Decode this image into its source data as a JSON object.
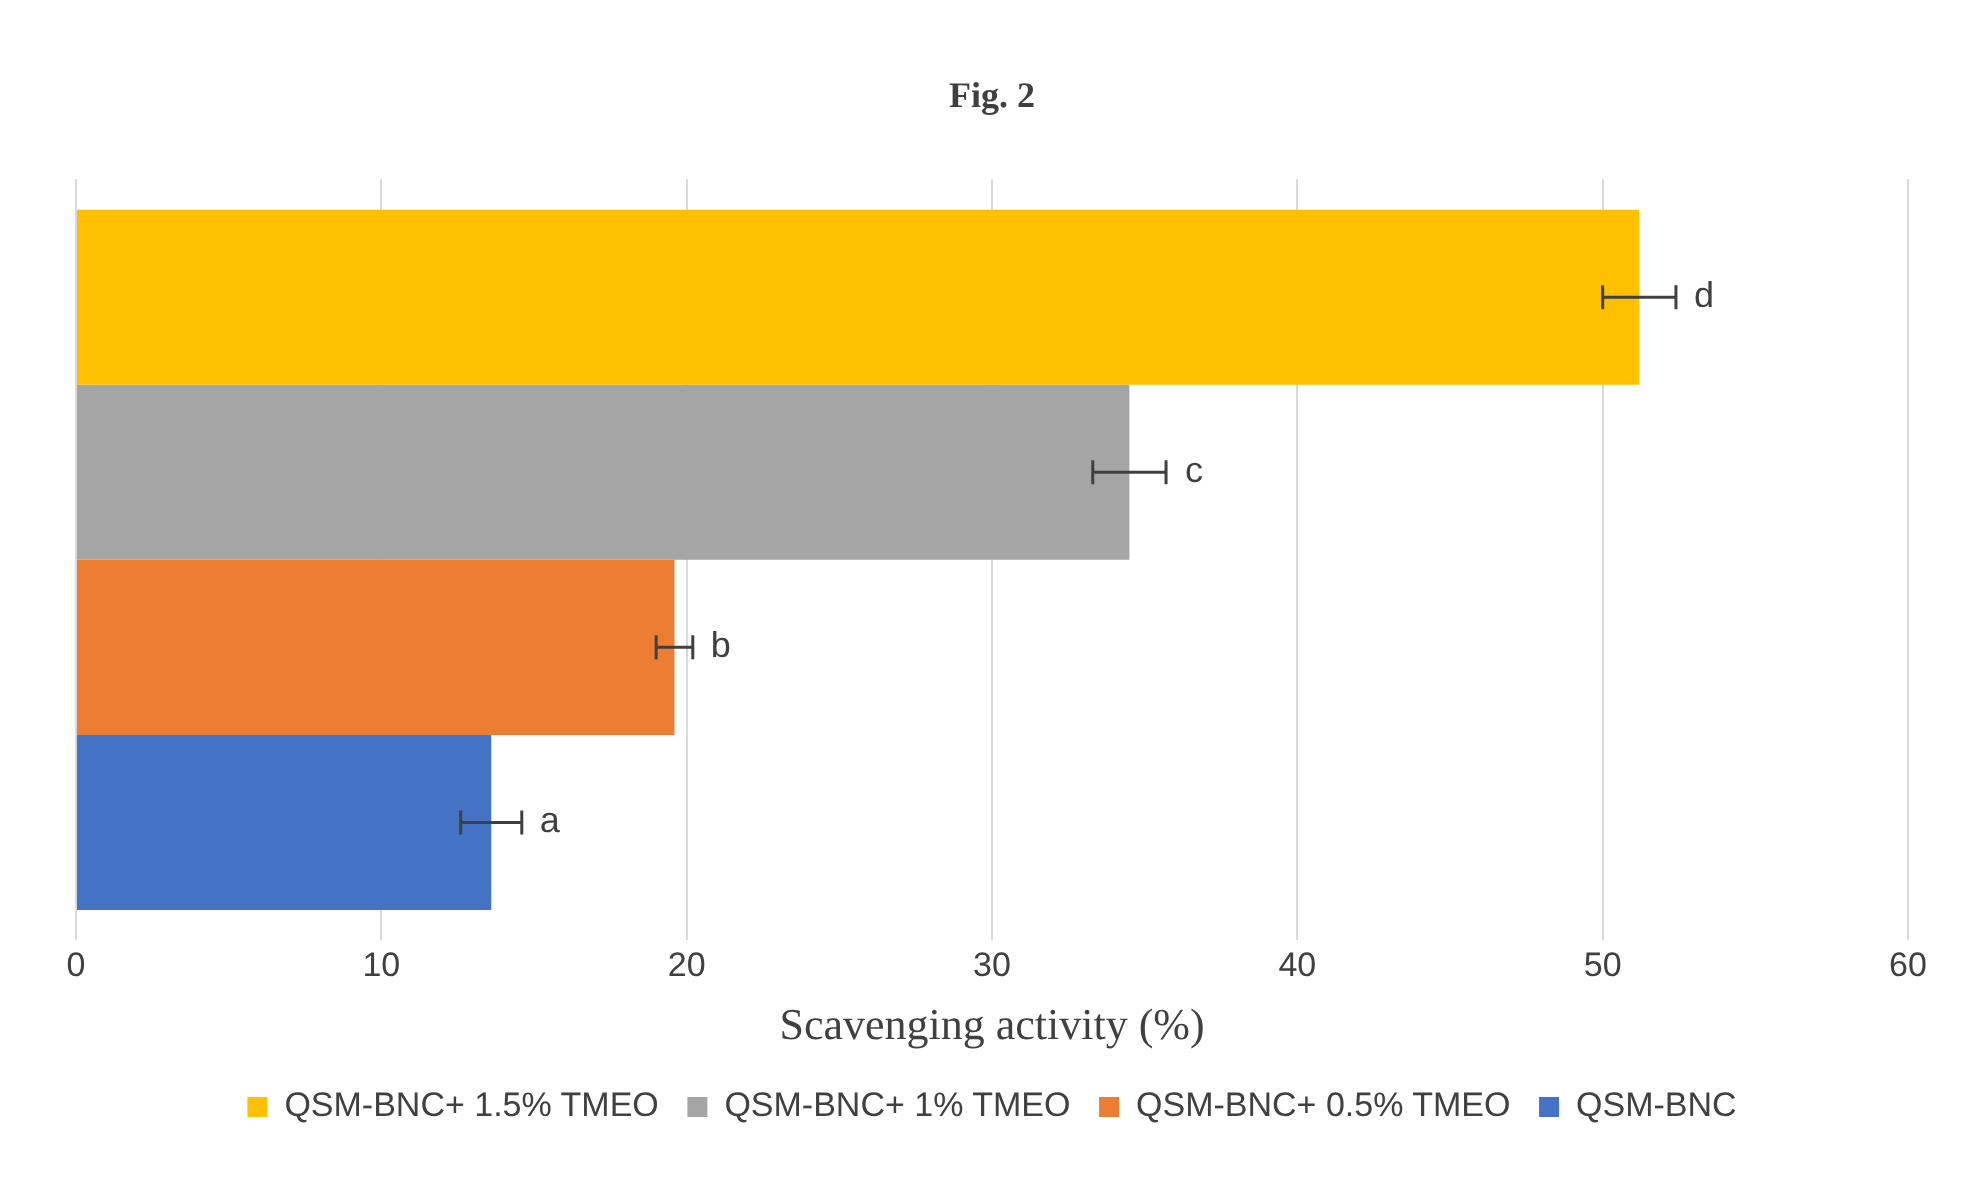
{
  "chart_data": {
    "type": "bar",
    "orientation": "horizontal",
    "title": "Fig. 2",
    "xlabel": "Scavenging activity (%)",
    "categories": [
      null
    ],
    "series": [
      {
        "name": "QSM-BNC+ 1.5% TMEO",
        "color": "#ffc000",
        "values": [
          51.2
        ],
        "errors": [
          1.2
        ]
      },
      {
        "name": "QSM-BNC+ 1% TMEO",
        "color": "#a5a5a5",
        "values": [
          34.5
        ],
        "errors": [
          1.2
        ]
      },
      {
        "name": "QSM-BNC+ 0.5% TMEO",
        "color": "#ed7d31",
        "values": [
          19.6
        ],
        "errors": [
          0.6
        ]
      },
      {
        "name": "QSM-BNC",
        "color": "#4472c4",
        "values": [
          13.6
        ],
        "errors": [
          1.0
        ]
      }
    ],
    "annotations": [
      "d",
      "c",
      "b",
      "a"
    ],
    "xlim": [
      0,
      60
    ],
    "xticks": [
      0,
      10,
      20,
      30,
      40,
      50,
      60
    ],
    "grid": "x",
    "legend": "bottom"
  }
}
